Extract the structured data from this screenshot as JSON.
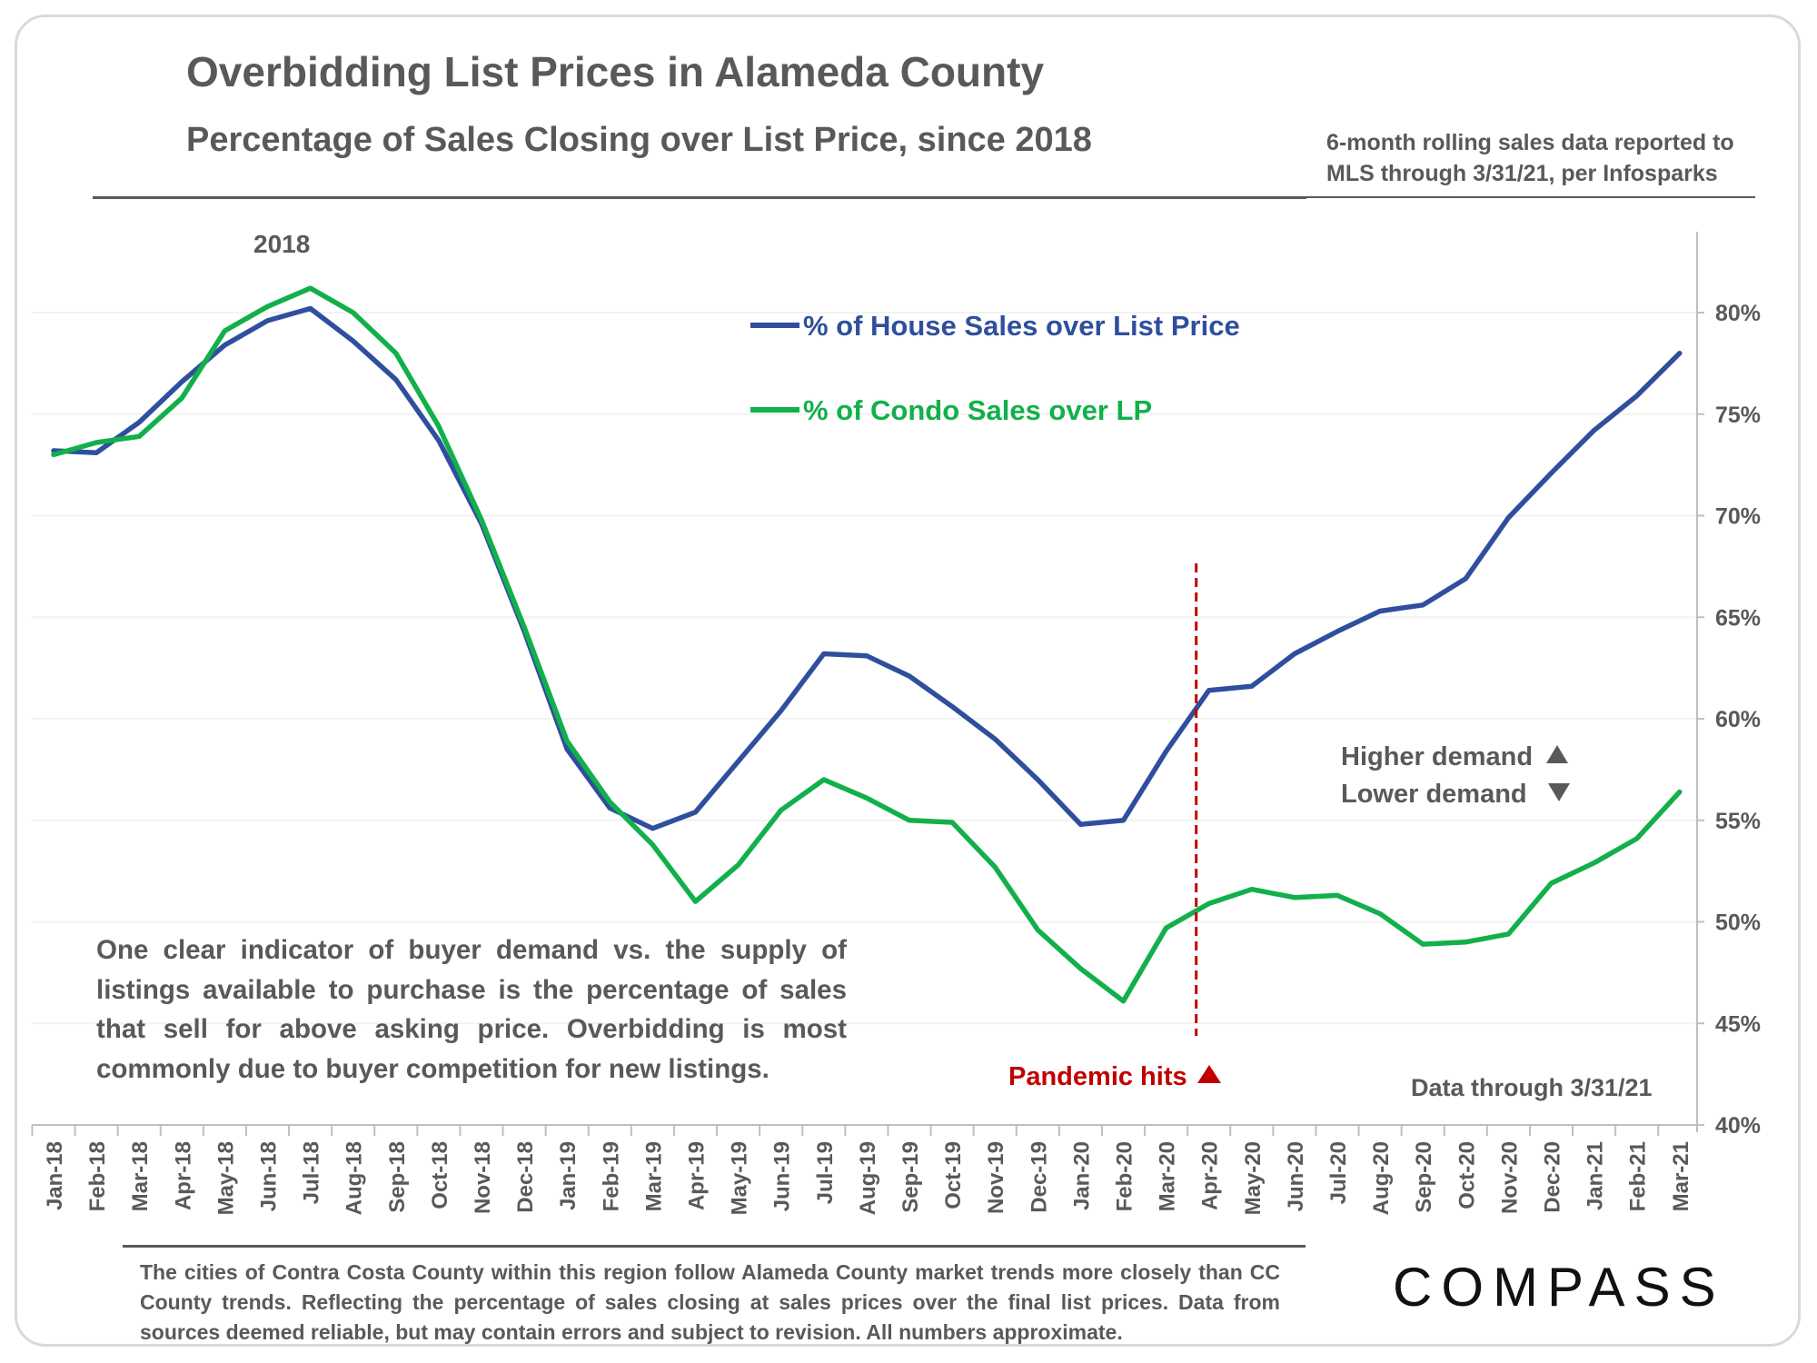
{
  "title": "Overbidding List Prices in Alameda County",
  "subtitle": "Percentage of Sales Closing over List Price, since 2018",
  "source_note_line1": "6-month rolling sales data reported to",
  "source_note_line2": "MLS through 3/31/21, per Infosparks",
  "paragraph": "One clear indicator of buyer demand vs. the supply of listings available to purchase is the percentage of sales that sell for above asking price. Overbidding is most commonly due to buyer competition for new listings.",
  "footnote": "The cities of Contra Costa County within this region follow Alameda County market trends more closely than CC County trends. Reflecting the percentage of sales closing at sales prices over the final list prices. Data from sources deemed reliable, but may contain errors and subject to revision. All numbers  approximate.",
  "logo_text": "COMPASS",
  "colors": {
    "house": "#2f4f9e",
    "condo": "#12b04a",
    "pandemic": "#c00000",
    "text": "#595959"
  },
  "chart_data": {
    "type": "line",
    "categories": [
      "Jan-18",
      "Feb-18",
      "Mar-18",
      "Apr-18",
      "May-18",
      "Jun-18",
      "Jul-18",
      "Aug-18",
      "Sep-18",
      "Oct-18",
      "Nov-18",
      "Dec-18",
      "Jan-19",
      "Feb-19",
      "Mar-19",
      "Apr-19",
      "May-19",
      "Jun-19",
      "Jul-19",
      "Aug-19",
      "Sep-19",
      "Oct-19",
      "Nov-19",
      "Dec-19",
      "Jan-20",
      "Feb-20",
      "Mar-20",
      "Apr-20",
      "May-20",
      "Jun-20",
      "Jul-20",
      "Aug-20",
      "Sep-20",
      "Oct-20",
      "Nov-20",
      "Dec-20",
      "Jan-21",
      "Feb-21",
      "Mar-21"
    ],
    "series": [
      {
        "name": "% of House Sales over List Price",
        "color": "#2f4f9e",
        "values": [
          73.2,
          73.1,
          74.6,
          76.6,
          78.4,
          79.6,
          80.2,
          78.6,
          76.7,
          73.7,
          69.6,
          64.3,
          58.5,
          55.6,
          54.6,
          55.4,
          57.9,
          60.4,
          63.2,
          63.1,
          62.1,
          60.6,
          59.0,
          57.0,
          54.8,
          55.0,
          58.4,
          61.4,
          61.6,
          63.2,
          64.3,
          65.3,
          65.6,
          66.9,
          69.9,
          72.1,
          74.2,
          75.9,
          78.0
        ]
      },
      {
        "name": "% of Condo Sales over LP",
        "color": "#12b04a",
        "values": [
          73.0,
          73.6,
          73.9,
          75.8,
          79.1,
          80.3,
          81.2,
          80.0,
          78.0,
          74.4,
          69.8,
          64.5,
          58.9,
          55.9,
          53.8,
          51.0,
          52.8,
          55.5,
          57.0,
          56.1,
          55.0,
          54.9,
          52.7,
          49.6,
          47.7,
          46.1,
          49.7,
          50.9,
          51.6,
          51.2,
          51.3,
          50.4,
          48.9,
          49.0,
          49.4,
          51.9,
          52.9,
          54.1,
          56.4
        ]
      }
    ],
    "ylim": [
      40,
      82
    ],
    "yticks": [
      40,
      45,
      50,
      55,
      60,
      65,
      70,
      75,
      80
    ],
    "ytick_labels": [
      "40%",
      "45%",
      "50%",
      "55%",
      "60%",
      "65%",
      "70%",
      "75%",
      "80%"
    ],
    "y_axis_position": "right",
    "grid": true,
    "legend_placement": "top-center",
    "annotations": {
      "year_label": "2018",
      "pandemic_label": "Pandemic hits",
      "pandemic_marker": "Apr-20",
      "higher_demand": "Higher demand",
      "lower_demand": "Lower demand",
      "data_through": "Data through 3/31/21"
    }
  }
}
